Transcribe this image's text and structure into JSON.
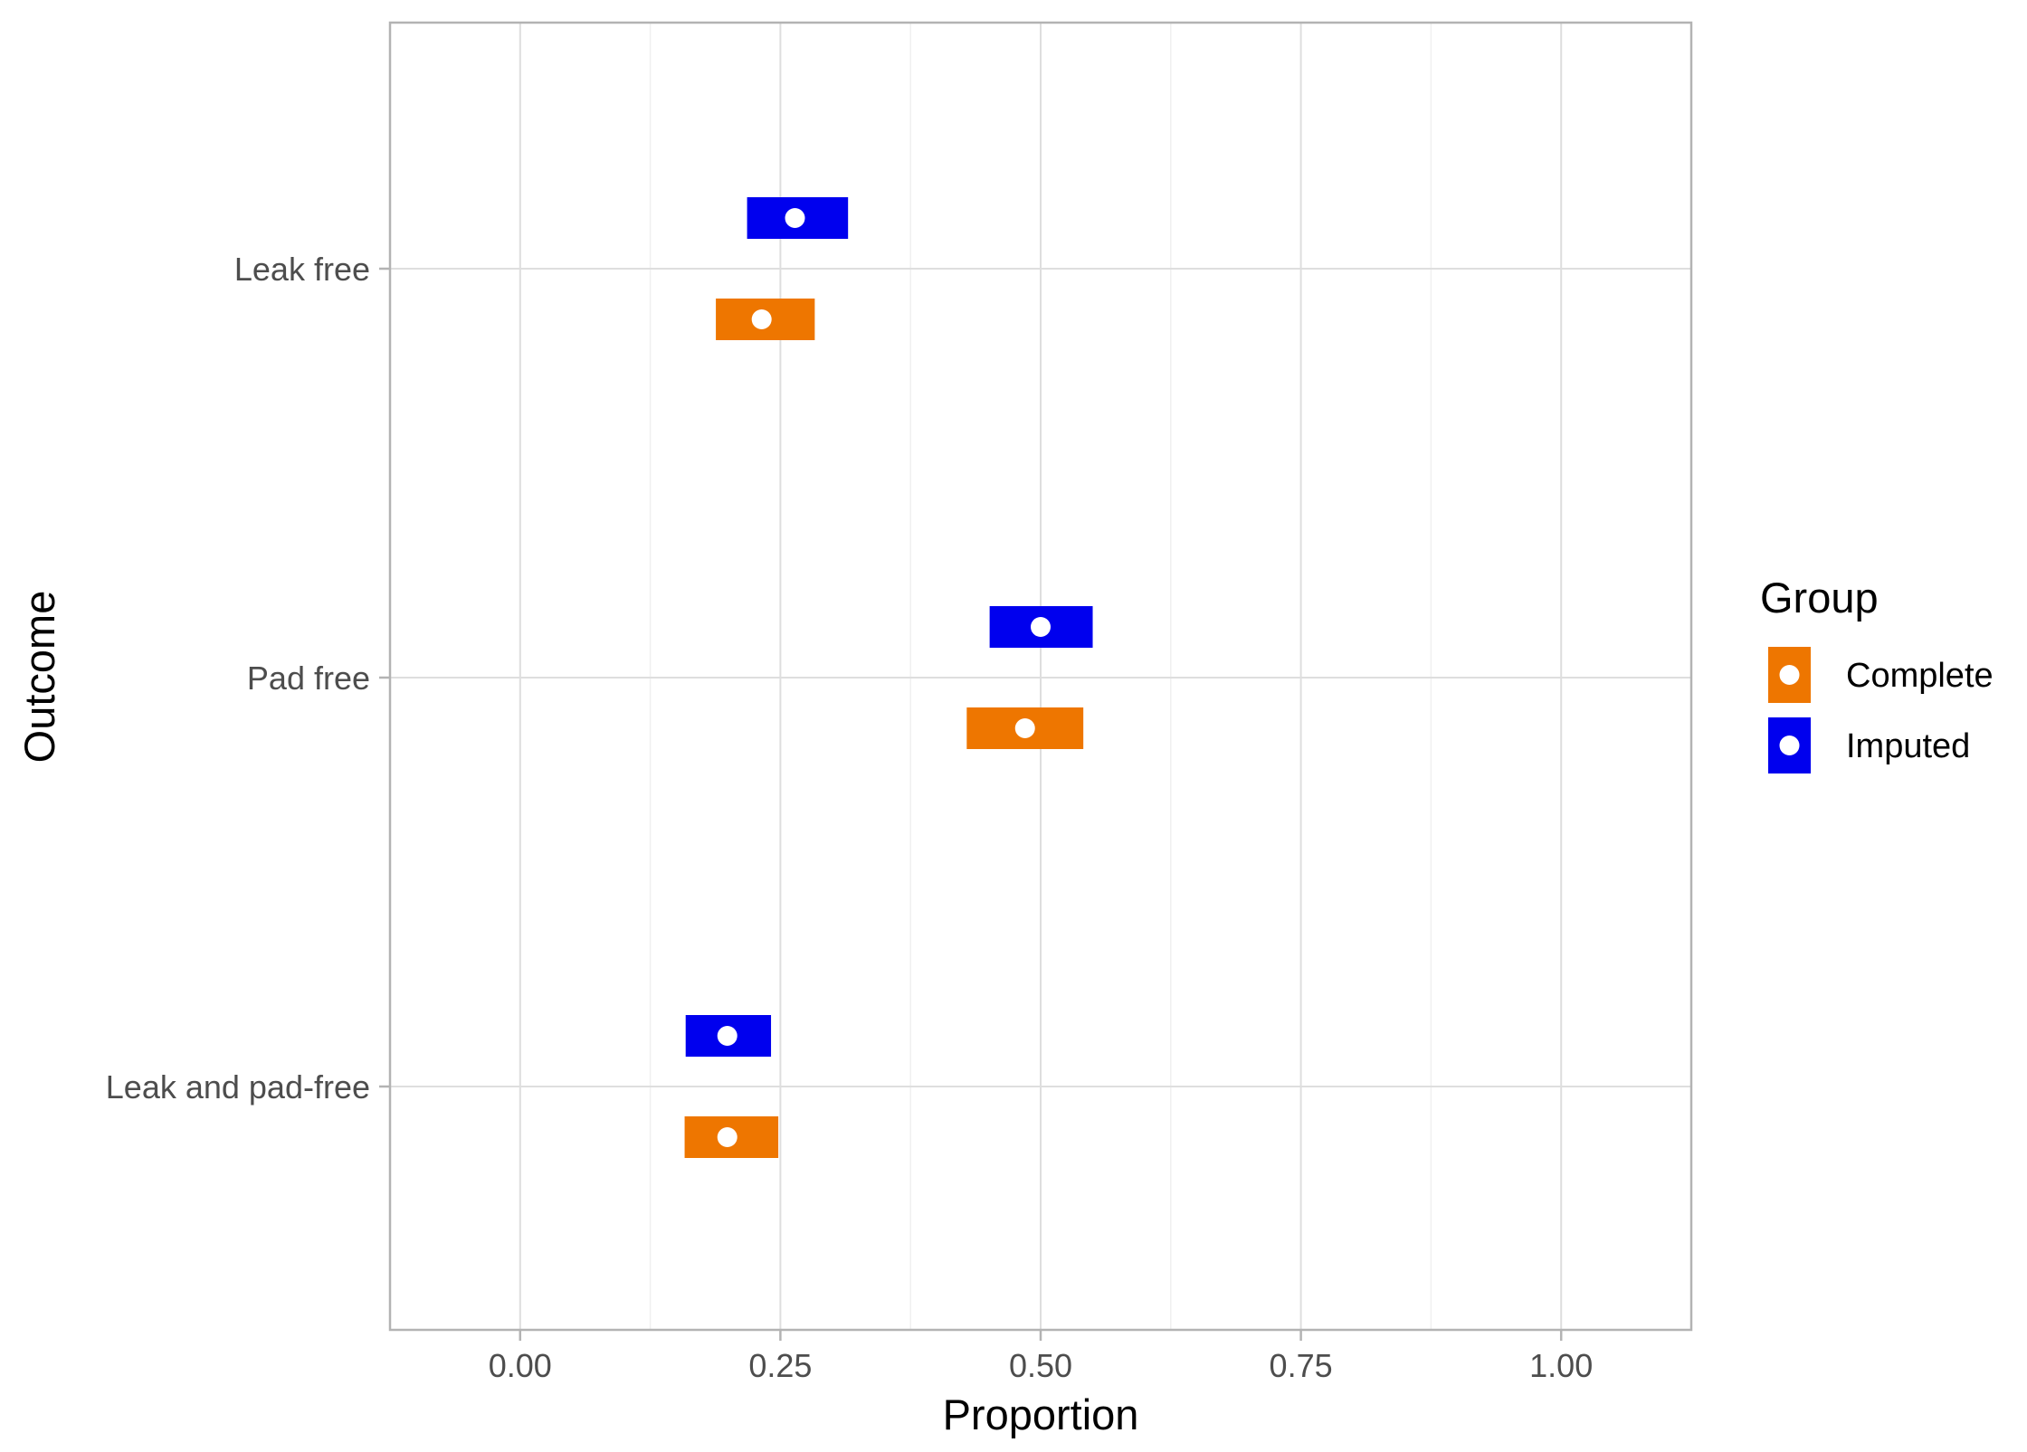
{
  "chart_data": {
    "type": "interval",
    "xlabel": "Proportion",
    "ylabel": "Outcome",
    "xlim": [
      -0.125,
      1.125
    ],
    "x_ticks": [
      "0.00",
      "0.25",
      "0.50",
      "0.75",
      "1.00"
    ],
    "x_tick_values": [
      0,
      0.25,
      0.5,
      0.75,
      1.0
    ],
    "categories": [
      "Leak free",
      "Pad free",
      "Leak and pad-free"
    ],
    "grid": true,
    "legend": {
      "title": "Group",
      "position": "right",
      "items": [
        {
          "label": "Complete",
          "color": "#EE7600"
        },
        {
          "label": "Imputed",
          "color": "#0000EE"
        }
      ]
    },
    "series": [
      {
        "name": "Complete",
        "color": "#EE7600",
        "values": [
          0.232,
          0.485,
          0.199
        ],
        "lower": [
          0.188,
          0.429,
          0.158
        ],
        "upper": [
          0.283,
          0.541,
          0.248
        ]
      },
      {
        "name": "Imputed",
        "color": "#0000EE",
        "values": [
          0.264,
          0.5,
          0.199
        ],
        "lower": [
          0.218,
          0.451,
          0.159
        ],
        "upper": [
          0.315,
          0.55,
          0.241
        ]
      }
    ]
  },
  "colors": {
    "panel_border": "#b3b3b3",
    "grid_major": "#dedede",
    "grid_minor": "#f0f0f0",
    "point": "#ffffff"
  }
}
